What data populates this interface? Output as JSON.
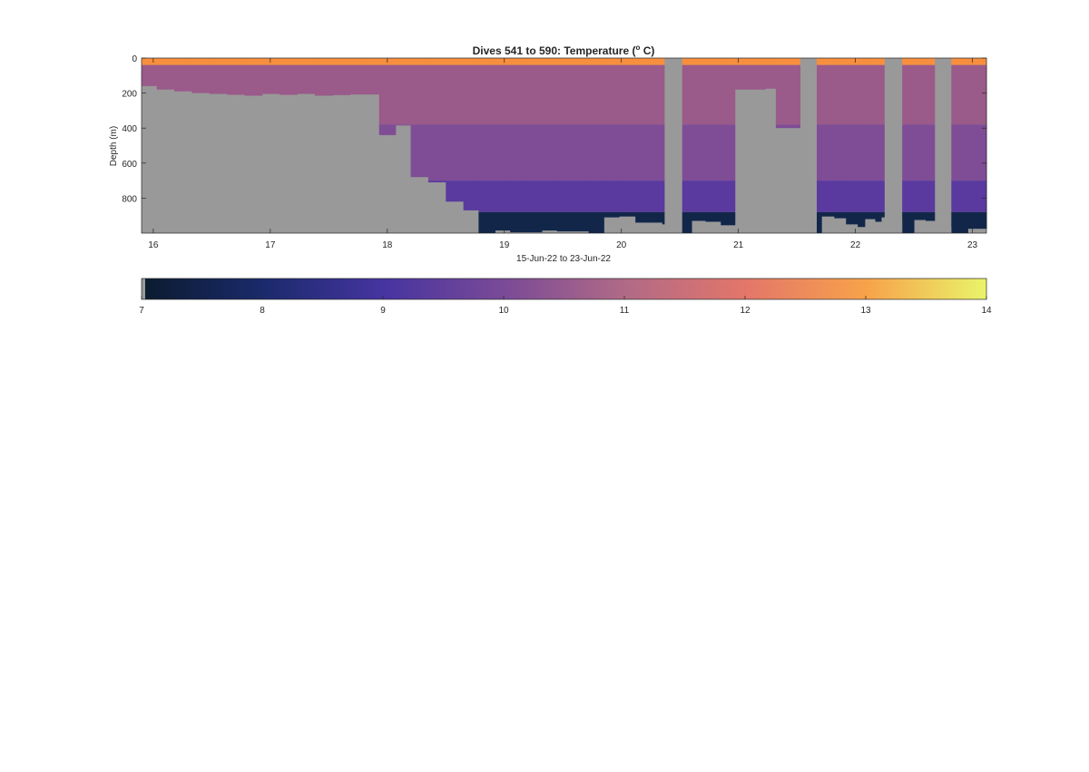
{
  "chart_data": {
    "type": "heatmap",
    "title": "Dives 541 to 590: Temperature (",
    "title_sup": "o",
    "title_end": " C)",
    "xlabel": "15-Jun-22 to 23-Jun-22",
    "ylabel": "Depth (m)",
    "xlim": [
      15.9,
      23.12
    ],
    "ylim": [
      0,
      1000
    ],
    "x_ticks": [
      16,
      17,
      18,
      19,
      20,
      21,
      22,
      23
    ],
    "y_ticks": [
      0,
      200,
      400,
      600,
      800
    ],
    "bottom_depths": [
      [
        15.9,
        160
      ],
      [
        16.03,
        180
      ],
      [
        16.18,
        190
      ],
      [
        16.33,
        200
      ],
      [
        16.48,
        205
      ],
      [
        16.63,
        210
      ],
      [
        16.78,
        215
      ],
      [
        16.93,
        205
      ],
      [
        17.08,
        210
      ],
      [
        17.23,
        205
      ],
      [
        17.38,
        215
      ],
      [
        17.53,
        212
      ],
      [
        17.68,
        208
      ],
      [
        17.78,
        208
      ],
      [
        17.93,
        440
      ],
      [
        18.07,
        385
      ],
      [
        18.2,
        680
      ],
      [
        18.35,
        710
      ],
      [
        18.5,
        820
      ],
      [
        18.65,
        870
      ],
      [
        18.78,
        1000
      ],
      [
        18.92,
        985
      ],
      [
        19.05,
        995
      ],
      [
        19.18,
        995
      ],
      [
        19.32,
        985
      ],
      [
        19.45,
        990
      ],
      [
        19.58,
        990
      ],
      [
        19.72,
        1000
      ],
      [
        19.85,
        910
      ],
      [
        19.98,
        905
      ],
      [
        20.12,
        940
      ],
      [
        20.25,
        940
      ],
      [
        20.35,
        950
      ],
      [
        20.45,
        1000
      ],
      [
        20.6,
        930
      ],
      [
        20.72,
        935
      ],
      [
        20.85,
        955
      ],
      [
        20.97,
        180
      ],
      [
        21.1,
        180
      ],
      [
        21.23,
        175
      ],
      [
        21.32,
        400
      ],
      [
        21.48,
        400
      ],
      [
        21.58,
        1000
      ],
      [
        21.71,
        905
      ],
      [
        21.82,
        915
      ],
      [
        21.92,
        950
      ],
      [
        22.02,
        965
      ],
      [
        22.08,
        920
      ],
      [
        22.17,
        935
      ],
      [
        22.22,
        910
      ],
      [
        22.28,
        920
      ],
      [
        22.4,
        1000
      ],
      [
        22.5,
        925
      ],
      [
        22.6,
        930
      ],
      [
        22.72,
        965
      ],
      [
        22.82,
        1000
      ],
      [
        22.96,
        975
      ],
      [
        23.05,
        975
      ]
    ],
    "gaps": [
      [
        20.37,
        20.52
      ],
      [
        21.53,
        21.67
      ],
      [
        22.25,
        22.4
      ],
      [
        22.68,
        22.82
      ]
    ],
    "colorbar": {
      "range": [
        7,
        14
      ],
      "ticks": [
        7,
        8,
        9,
        10,
        11,
        12,
        13,
        14
      ],
      "colors": [
        "#0b1b2e",
        "#1a2a6b",
        "#4634a0",
        "#7a4a97",
        "#b06a86",
        "#e3766a",
        "#f7a24a",
        "#e9f46a"
      ]
    },
    "colors": {
      "no_data": "#999999",
      "surface": "#f78f3f",
      "upper": "#9a5a8a",
      "mid": "#7f4c96",
      "deep": "#5a3a9e",
      "deepest": "#12264a"
    }
  }
}
